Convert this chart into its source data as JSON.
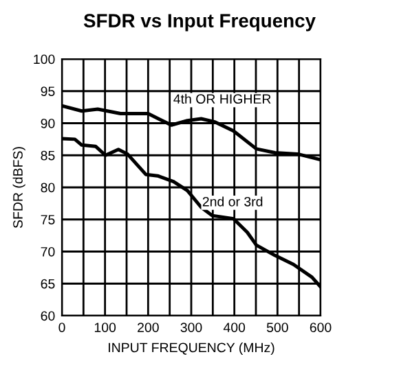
{
  "chart_data": {
    "type": "line",
    "title": "SFDR vs Input Frequency",
    "xlabel": "INPUT FREQUENCY (MHz)",
    "ylabel": "SFDR (dBFS)",
    "xlim": [
      0,
      600
    ],
    "ylim": [
      60,
      100
    ],
    "xticks": [
      0,
      {
        "value": 50,
        "label": null
      },
      100,
      {
        "value": 150,
        "label": null
      },
      200,
      {
        "value": 250,
        "label": null
      },
      300,
      {
        "value": 350,
        "label": null
      },
      400,
      {
        "value": 450,
        "label": null
      },
      500,
      {
        "value": 550,
        "label": null
      },
      600
    ],
    "yticks": [
      60,
      65,
      70,
      75,
      80,
      85,
      90,
      95,
      100
    ],
    "grid": true,
    "legend": false,
    "marker": "none",
    "line_style": "solid",
    "series": [
      {
        "name": "4th OR HIGHER",
        "color": "#000000",
        "x": [
          0,
          46,
          83,
          136,
          200,
          227,
          254,
          291,
          323,
          355,
          398,
          451,
          494,
          547,
          600
        ],
        "values": [
          92.7,
          91.9,
          92.2,
          91.5,
          91.5,
          90.6,
          89.7,
          90.4,
          90.7,
          90.2,
          88.8,
          86.0,
          85.4,
          85.2,
          84.3
        ]
      },
      {
        "name": "2nd or 3rd",
        "color": "#000000",
        "x": [
          0,
          30,
          46,
          78,
          101,
          131,
          152,
          195,
          222,
          259,
          291,
          323,
          349,
          398,
          430,
          451,
          494,
          537,
          580,
          600
        ],
        "values": [
          87.6,
          87.5,
          86.6,
          86.4,
          85.0,
          85.9,
          85.2,
          82.0,
          81.8,
          80.9,
          79.5,
          76.9,
          75.6,
          75.1,
          73.0,
          71.0,
          69.4,
          68.0,
          66.0,
          64.5
        ]
      }
    ]
  }
}
